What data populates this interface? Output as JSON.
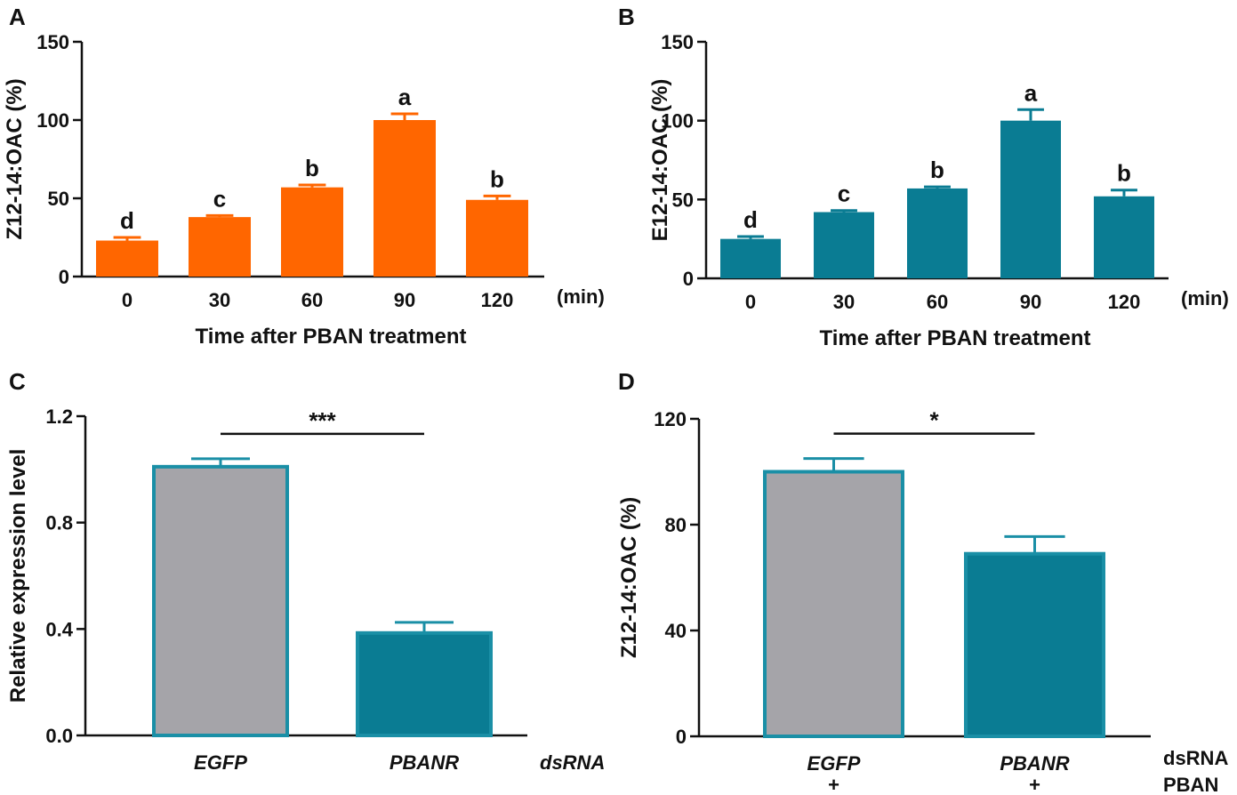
{
  "colors": {
    "orange": "#ff6600",
    "teal": "#0a7c93",
    "grey": "#a5a4a9",
    "teal_outline": "#1a8fa6",
    "axis": "#111111"
  },
  "chart_data": [
    {
      "id": "A",
      "type": "bar",
      "panel_label": "A",
      "categories": [
        "0",
        "30",
        "60",
        "90",
        "120"
      ],
      "values": [
        23,
        38,
        57,
        100,
        49
      ],
      "errors": [
        2,
        1,
        1.5,
        4,
        2.5
      ],
      "letters": [
        "d",
        "c",
        "b",
        "a",
        "b"
      ],
      "ylabel": "Z12-14:OAC (%)",
      "xlabel": "Time after PBAN treatment",
      "unit": "(min)",
      "ylim": [
        0,
        150
      ],
      "yticks": [
        0,
        50,
        100,
        150
      ],
      "color": "orange"
    },
    {
      "id": "B",
      "type": "bar",
      "panel_label": "B",
      "categories": [
        "0",
        "30",
        "60",
        "90",
        "120"
      ],
      "values": [
        25,
        42,
        57,
        100,
        52
      ],
      "errors": [
        1.5,
        1,
        1,
        7,
        4
      ],
      "letters": [
        "d",
        "c",
        "b",
        "a",
        "b"
      ],
      "ylabel": "E12-14:OAC (%)",
      "xlabel": "Time after PBAN treatment",
      "unit": "(min)",
      "ylim": [
        0,
        150
      ],
      "yticks": [
        0,
        50,
        100,
        150
      ],
      "color": "teal"
    },
    {
      "id": "C",
      "type": "bar",
      "panel_label": "C",
      "categories": [
        "EGFP",
        "PBANR"
      ],
      "values": [
        1.01,
        0.385
      ],
      "errors": [
        0.03,
        0.04
      ],
      "ylabel": "Relative expression level",
      "xlabel": "",
      "row_label": "dsRNA",
      "significance": "***",
      "ylim": [
        0,
        1.2
      ],
      "yticks": [
        "0.0",
        "0.4",
        "0.8",
        "1.2"
      ],
      "colors": [
        "grey",
        "teal"
      ]
    },
    {
      "id": "D",
      "type": "bar",
      "panel_label": "D",
      "categories": [
        "EGFP",
        "PBANR"
      ],
      "values": [
        100,
        69
      ],
      "errors": [
        5,
        6.5
      ],
      "ylabel": "Z12-14:OAC (%)",
      "xlabel": "",
      "row_labels": [
        "dsRNA",
        "PBAN"
      ],
      "pban_row": [
        "+",
        "+"
      ],
      "significance": "*",
      "ylim": [
        0,
        120
      ],
      "yticks": [
        0,
        40,
        80,
        120
      ],
      "colors": [
        "grey",
        "teal"
      ]
    }
  ]
}
